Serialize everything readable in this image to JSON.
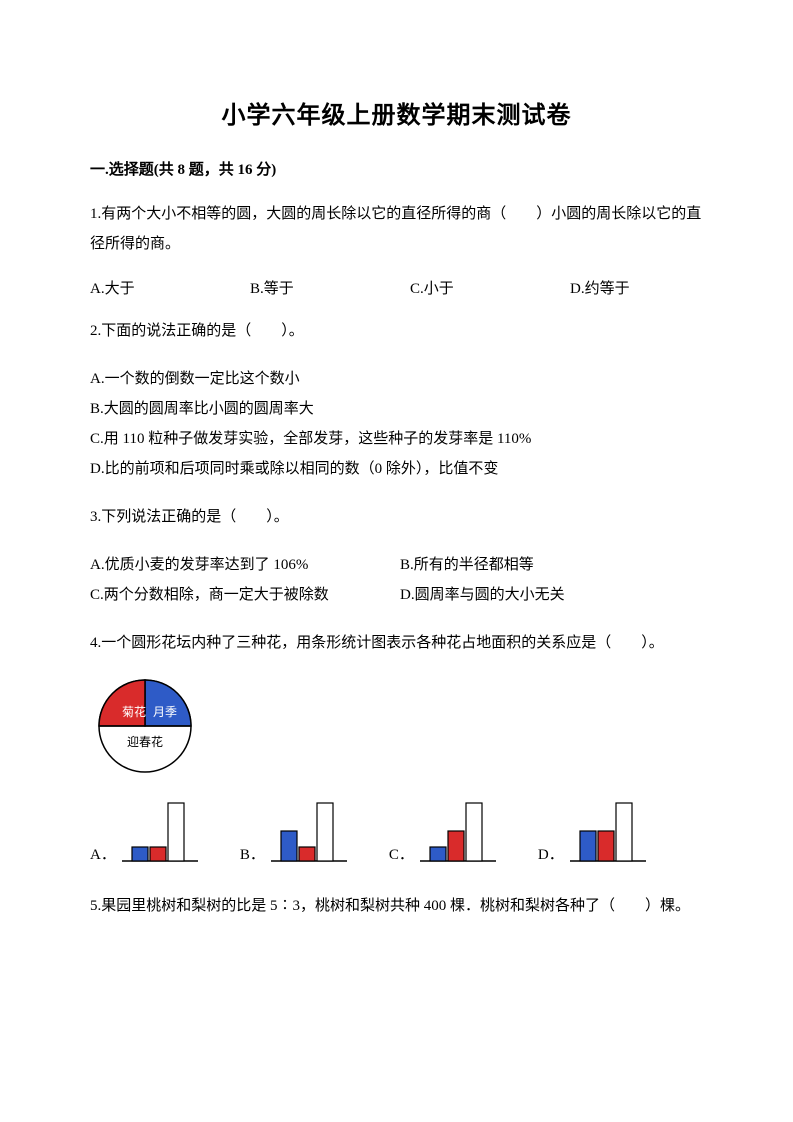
{
  "title": "小学六年级上册数学期末测试卷",
  "section1": {
    "header": "一.选择题(共 8 题，共 16 分)",
    "q1": {
      "text": "1.有两个大小不相等的圆，大圆的周长除以它的直径所得的商（　　）小圆的周长除以它的直径所得的商。",
      "a": "A.大于",
      "b": "B.等于",
      "c": "C.小于",
      "d": "D.约等于"
    },
    "q2": {
      "text": "2.下面的说法正确的是（　　）。",
      "a": "A.一个数的倒数一定比这个数小",
      "b": "B.大圆的圆周率比小圆的圆周率大",
      "c": "C.用 110 粒种子做发芽实验，全部发芽，这些种子的发芽率是 110%",
      "d": "D.比的前项和后项同时乘或除以相同的数（0 除外），比值不变"
    },
    "q3": {
      "text": "3.下列说法正确的是（　　）。",
      "a": "A.优质小麦的发芽率达到了 106%",
      "b": "B.所有的半径都相等",
      "c": "C.两个分数相除，商一定大于被除数",
      "d": "D.圆周率与圆的大小无关"
    },
    "q4": {
      "text": "4.一个圆形花坛内种了三种花，用条形统计图表示各种花占地面积的关系应是（　　）。",
      "pie": {
        "labels": {
          "ju": "菊花",
          "yueji": "月季",
          "yingchun": "迎春花"
        },
        "colors": {
          "ju": "#d92b2b",
          "yueji": "#2e5bc7",
          "white": "#ffffff",
          "border": "#000000"
        }
      },
      "charts": {
        "colors": {
          "blue": "#2e5bc7",
          "red": "#d92b2b",
          "white": "#ffffff",
          "border": "#000000"
        },
        "A": {
          "bars": [
            {
              "h": 14,
              "fill": "blue"
            },
            {
              "h": 14,
              "fill": "red"
            },
            {
              "h": 58,
              "fill": "white"
            }
          ]
        },
        "B": {
          "bars": [
            {
              "h": 30,
              "fill": "blue"
            },
            {
              "h": 14,
              "fill": "red"
            },
            {
              "h": 58,
              "fill": "white"
            }
          ]
        },
        "C": {
          "bars": [
            {
              "h": 14,
              "fill": "blue"
            },
            {
              "h": 30,
              "fill": "red"
            },
            {
              "h": 58,
              "fill": "white"
            }
          ]
        },
        "D": {
          "bars": [
            {
              "h": 30,
              "fill": "blue"
            },
            {
              "h": 30,
              "fill": "red"
            },
            {
              "h": 58,
              "fill": "white"
            }
          ]
        }
      },
      "optA": "A．",
      "optB": "B．",
      "optC": "C．",
      "optD": "D．"
    },
    "q5": {
      "text": "5.果园里桃树和梨树的比是 5∶3，桃树和梨树共种 400 棵．桃树和梨树各种了（　　）棵。"
    }
  }
}
